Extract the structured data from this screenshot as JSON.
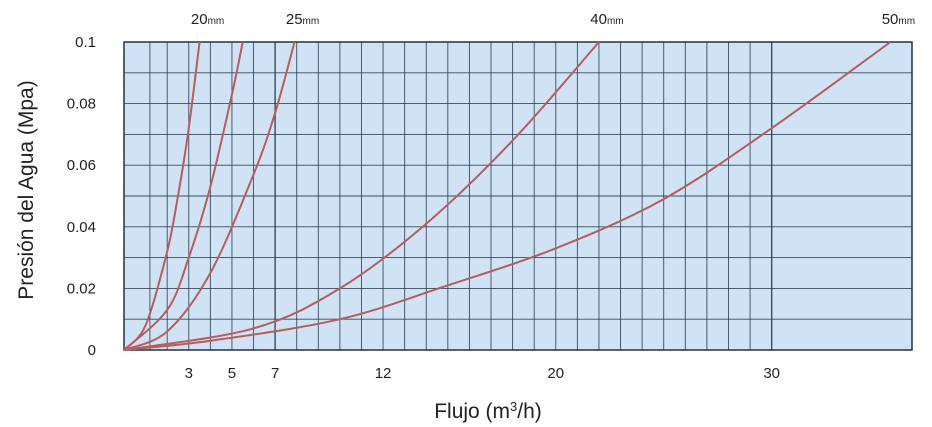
{
  "chart_data": {
    "type": "line",
    "title": "",
    "xlabel": "Flujo (m",
    "xlabel_sup": "3",
    "xlabel_end": "/h)",
    "ylabel": "Presión del Agua (Mpa)",
    "xlim": [
      0,
      36.5
    ],
    "ylim": [
      0,
      0.1
    ],
    "x_ticks": [
      {
        "value": 3,
        "label": "3"
      },
      {
        "value": 5,
        "label": "5"
      },
      {
        "value": 7,
        "label": "7"
      },
      {
        "value": 12,
        "label": "12"
      },
      {
        "value": 20,
        "label": "20"
      },
      {
        "value": 30,
        "label": "30"
      }
    ],
    "y_ticks": [
      {
        "value": 0,
        "label": "0"
      },
      {
        "value": 0.02,
        "label": "0.02"
      },
      {
        "value": 0.04,
        "label": "0.04"
      },
      {
        "value": 0.06,
        "label": "0.06"
      },
      {
        "value": 0.08,
        "label": "0.08"
      },
      {
        "value": 0.1,
        "label": "0.1"
      }
    ],
    "grid": true,
    "series": [
      {
        "name": "20",
        "unit": "mm",
        "x": [
          0,
          1,
          2,
          2.5,
          3,
          3.5
        ],
        "y": [
          0,
          0.008,
          0.032,
          0.05,
          0.072,
          0.1
        ]
      },
      {
        "name": "",
        "unit": "",
        "x": [
          0,
          2,
          3,
          4,
          5,
          5.5
        ],
        "y": [
          0,
          0.013,
          0.03,
          0.053,
          0.083,
          0.1
        ]
      },
      {
        "name": "25",
        "unit": "mm",
        "x": [
          0,
          2,
          4,
          6,
          7,
          7.9
        ],
        "y": [
          0,
          0.006,
          0.025,
          0.057,
          0.077,
          0.1
        ]
      },
      {
        "name": "40",
        "unit": "mm",
        "x": [
          0,
          6,
          10,
          14,
          18,
          22
        ],
        "y": [
          0,
          0.007,
          0.02,
          0.041,
          0.068,
          0.1
        ]
      },
      {
        "name": "50",
        "unit": "mm",
        "x": [
          0,
          4,
          10,
          15,
          20,
          25,
          30,
          35.5
        ],
        "y": [
          0,
          0.003,
          0.01,
          0.021,
          0.033,
          0.049,
          0.072,
          0.1
        ]
      }
    ]
  },
  "colors": {
    "plot_background": "#cfe3f5",
    "grid_line": "#1f3344",
    "curve": "#b85c5c"
  }
}
